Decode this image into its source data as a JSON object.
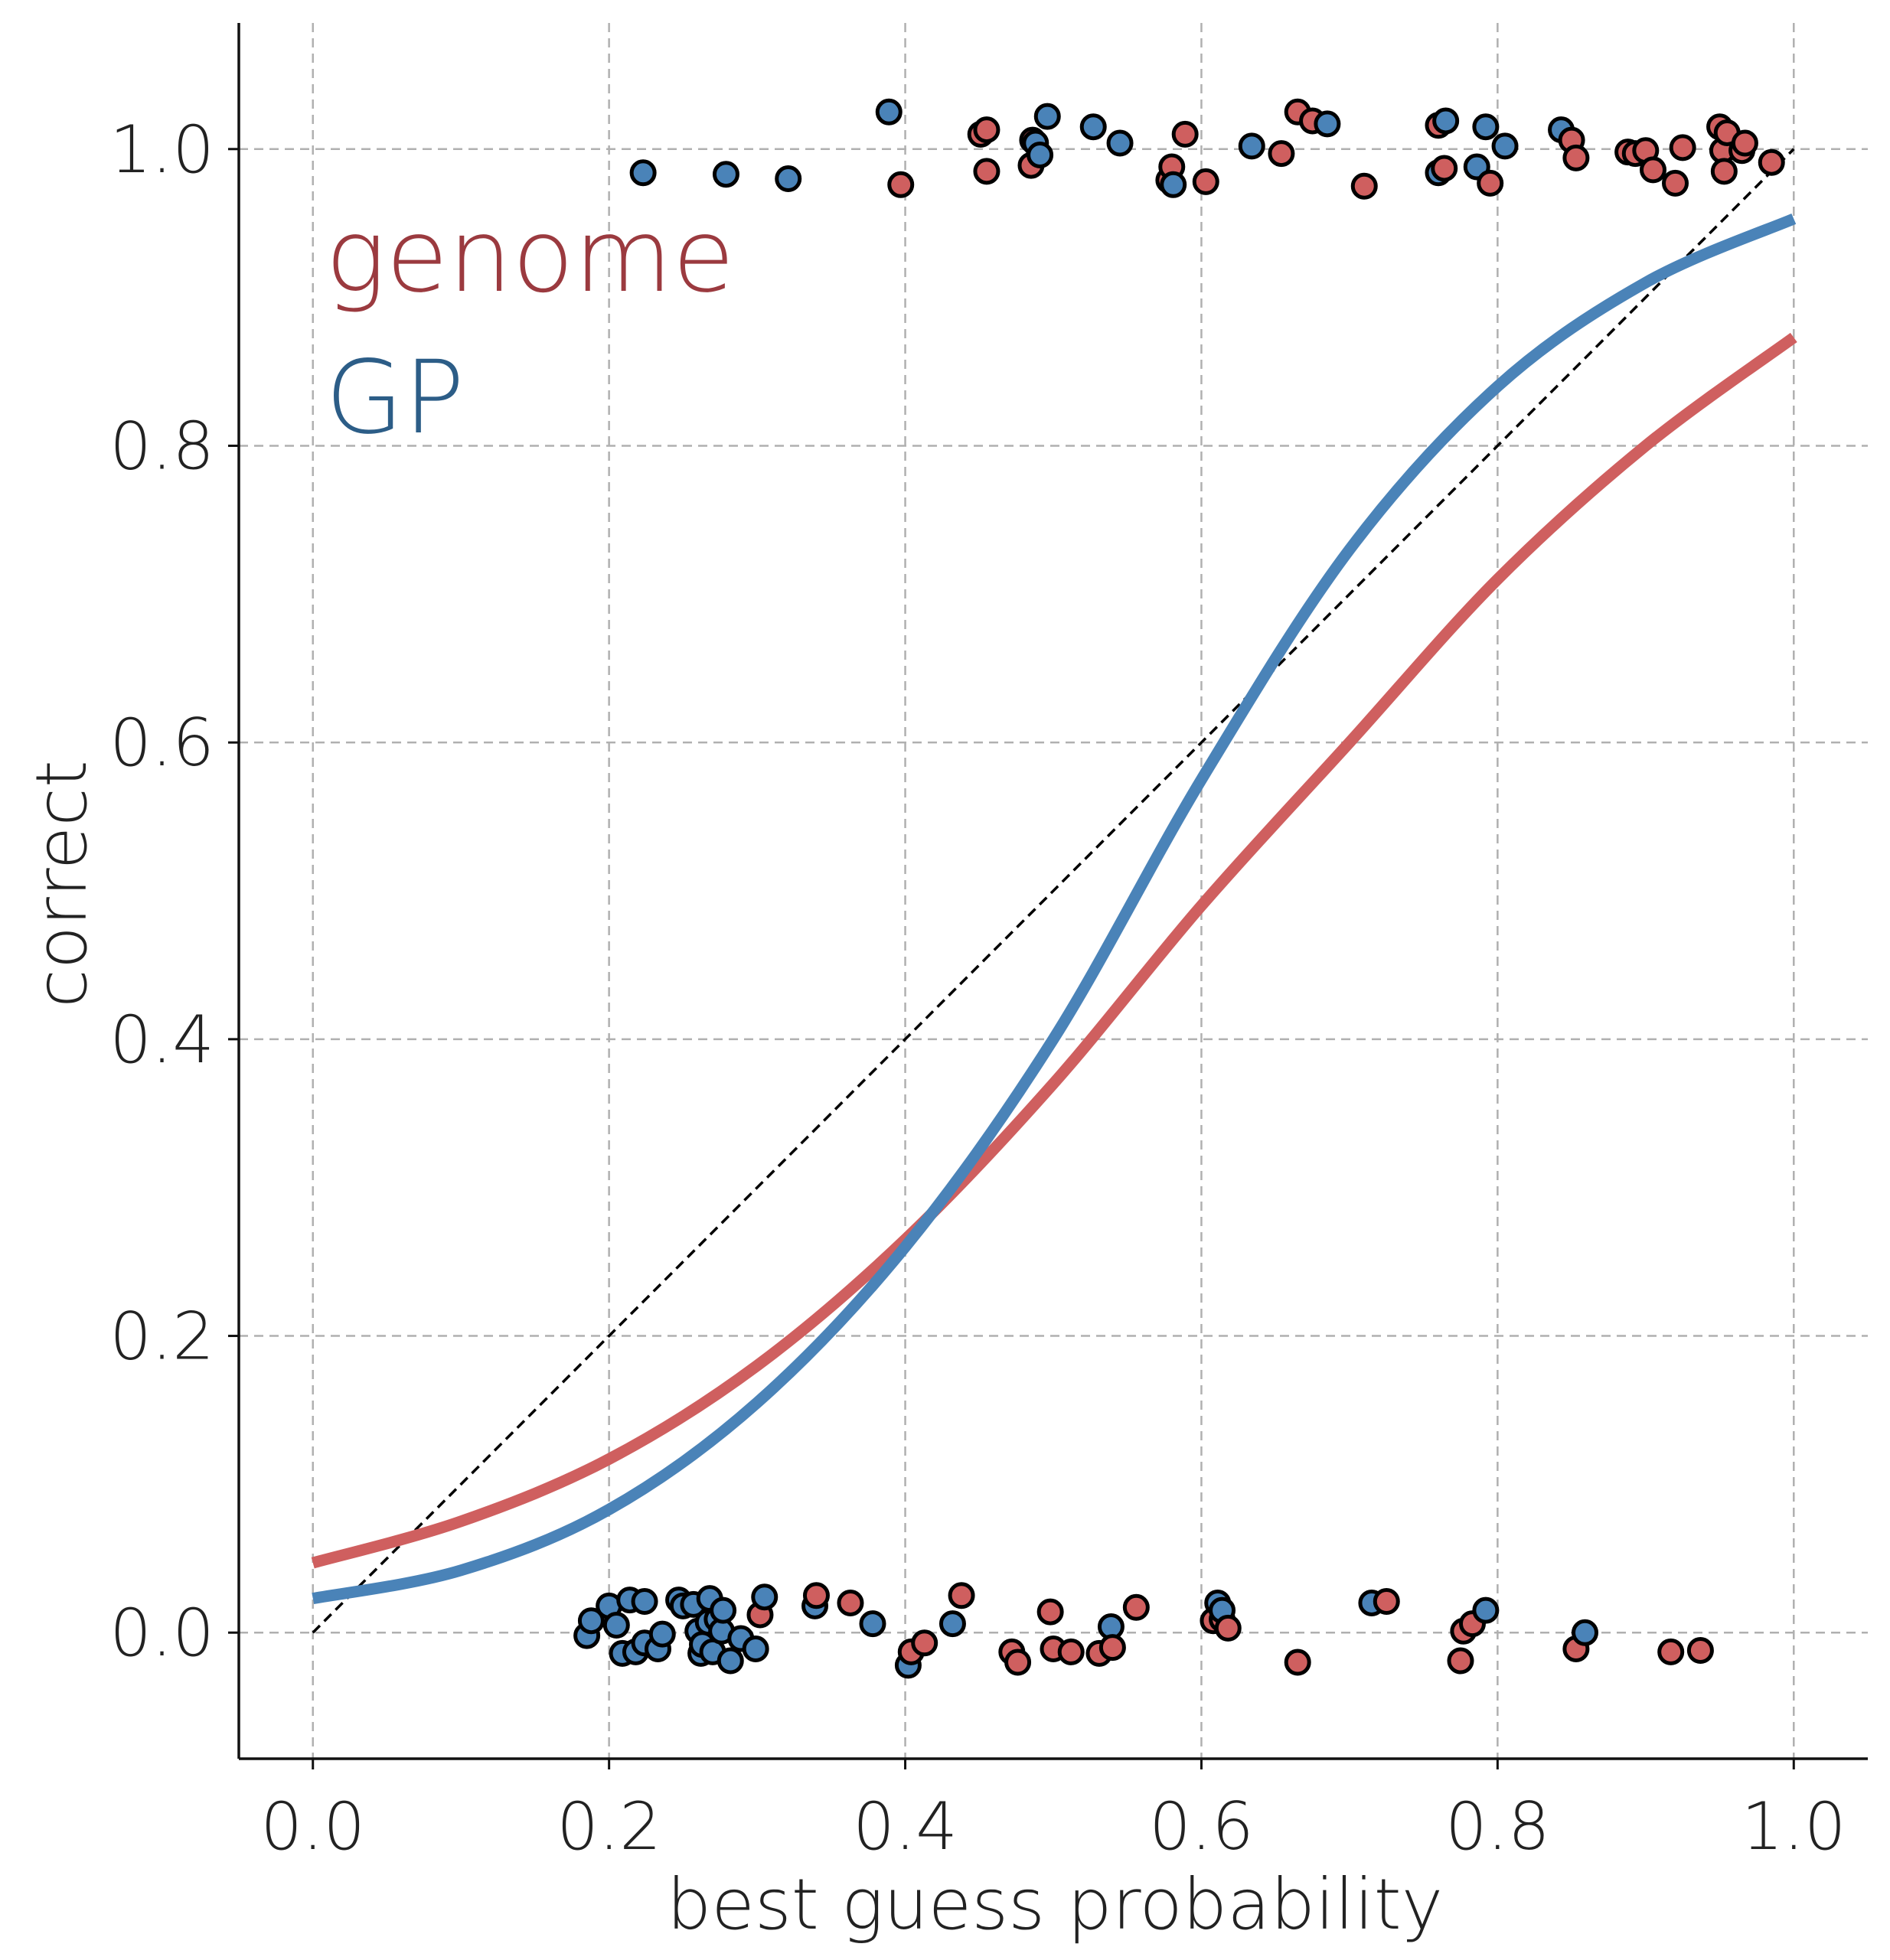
{
  "chart_data": {
    "type": "scatter",
    "xlabel": "best guess probability",
    "ylabel": "correct",
    "xlim": [
      -0.05,
      1.05
    ],
    "ylim": [
      -0.085,
      1.085
    ],
    "xticks": [
      "0.0",
      "0.2",
      "0.4",
      "0.6",
      "0.8",
      "1.0"
    ],
    "yticks": [
      "0.0",
      "0.2",
      "0.4",
      "0.6",
      "0.8",
      "1.0"
    ],
    "grid": true,
    "legend_placement": "upper-left",
    "legend": [
      {
        "label": "genome",
        "color": "#9b3a3f"
      },
      {
        "label": "GP",
        "color": "#2c5d87"
      }
    ],
    "reference_line": {
      "style": "dashed",
      "color": "#000000",
      "x": [
        0.0,
        1.0
      ],
      "y": [
        0.0,
        1.0
      ]
    },
    "series": [
      {
        "name": "genome",
        "color": "#cf5f5f",
        "fit_curve": {
          "x": [
            0.0,
            0.1,
            0.2,
            0.3,
            0.4,
            0.5,
            0.6,
            0.7,
            0.8,
            0.9,
            1.0
          ],
          "y": [
            0.047,
            0.075,
            0.117,
            0.18,
            0.265,
            0.37,
            0.49,
            0.6,
            0.71,
            0.8,
            0.873
          ]
        },
        "points": [
          [
            0.397,
            0.976
          ],
          [
            0.451,
            1.01
          ],
          [
            0.455,
            1.013
          ],
          [
            0.455,
            0.985
          ],
          [
            0.485,
            0.989
          ],
          [
            0.486,
            1.006
          ],
          [
            0.578,
            0.979
          ],
          [
            0.58,
            0.988
          ],
          [
            0.589,
            1.01
          ],
          [
            0.603,
            0.978
          ],
          [
            0.654,
            0.997
          ],
          [
            0.665,
            1.025
          ],
          [
            0.675,
            1.019
          ],
          [
            0.71,
            0.975
          ],
          [
            0.76,
            1.016
          ],
          [
            0.764,
            0.987
          ],
          [
            0.795,
            0.977
          ],
          [
            0.85,
            1.006
          ],
          [
            0.853,
            0.994
          ],
          [
            0.888,
            0.998
          ],
          [
            0.893,
            0.997
          ],
          [
            0.9,
            0.999
          ],
          [
            0.905,
            0.986
          ],
          [
            0.92,
            0.977
          ],
          [
            0.925,
            1.001
          ],
          [
            0.95,
            1.015
          ],
          [
            0.952,
            0.999
          ],
          [
            0.953,
            0.985
          ],
          [
            0.955,
            1.011
          ],
          [
            0.965,
            0.999
          ],
          [
            0.967,
            1.004
          ],
          [
            0.985,
            0.991
          ],
          [
            0.302,
            0.012
          ],
          [
            0.34,
            0.025
          ],
          [
            0.363,
            0.02
          ],
          [
            0.404,
            -0.013
          ],
          [
            0.413,
            -0.007
          ],
          [
            0.438,
            0.025
          ],
          [
            0.472,
            -0.013
          ],
          [
            0.476,
            -0.02
          ],
          [
            0.498,
            0.014
          ],
          [
            0.5,
            -0.011
          ],
          [
            0.512,
            -0.013
          ],
          [
            0.531,
            -0.014
          ],
          [
            0.54,
            -0.01
          ],
          [
            0.556,
            0.017
          ],
          [
            0.608,
            0.008
          ],
          [
            0.614,
            0.009
          ],
          [
            0.618,
            0.003
          ],
          [
            0.665,
            -0.02
          ],
          [
            0.725,
            0.021
          ],
          [
            0.775,
            -0.019
          ],
          [
            0.777,
            0.001
          ],
          [
            0.783,
            0.006
          ],
          [
            0.853,
            -0.011
          ],
          [
            0.917,
            -0.013
          ],
          [
            0.937,
            -0.012
          ]
        ]
      },
      {
        "name": "GP",
        "color": "#4a83b8",
        "fit_curve": {
          "x": [
            0.0,
            0.1,
            0.2,
            0.3,
            0.4,
            0.5,
            0.6,
            0.7,
            0.8,
            0.9,
            1.0
          ],
          "y": [
            0.023,
            0.042,
            0.083,
            0.155,
            0.26,
            0.4,
            0.575,
            0.73,
            0.84,
            0.91,
            0.953
          ]
        },
        "points": [
          [
            0.223,
            0.984
          ],
          [
            0.279,
            0.983
          ],
          [
            0.321,
            0.98
          ],
          [
            0.389,
            1.025
          ],
          [
            0.488,
            1.004
          ],
          [
            0.491,
            0.996
          ],
          [
            0.496,
            1.022
          ],
          [
            0.527,
            1.015
          ],
          [
            0.545,
            1.004
          ],
          [
            0.581,
            0.976
          ],
          [
            0.634,
            1.002
          ],
          [
            0.685,
            1.017
          ],
          [
            0.76,
            0.984
          ],
          [
            0.765,
            1.019
          ],
          [
            0.786,
            0.988
          ],
          [
            0.792,
            1.015
          ],
          [
            0.805,
            1.002
          ],
          [
            0.843,
            1.013
          ],
          [
            0.185,
            -0.002
          ],
          [
            0.188,
            0.008
          ],
          [
            0.2,
            0.018
          ],
          [
            0.205,
            0.005
          ],
          [
            0.209,
            -0.014
          ],
          [
            0.214,
            0.022
          ],
          [
            0.218,
            -0.013
          ],
          [
            0.224,
            -0.007
          ],
          [
            0.224,
            0.021
          ],
          [
            0.233,
            -0.011
          ],
          [
            0.236,
            -0.001
          ],
          [
            0.247,
            0.022
          ],
          [
            0.25,
            0.018
          ],
          [
            0.257,
            0.019
          ],
          [
            0.26,
            0.001
          ],
          [
            0.262,
            -0.014
          ],
          [
            0.263,
            -0.008
          ],
          [
            0.267,
            0.007
          ],
          [
            0.268,
            0.023
          ],
          [
            0.27,
            -0.013
          ],
          [
            0.273,
            0.009
          ],
          [
            0.276,
            0.001
          ],
          [
            0.277,
            0.015
          ],
          [
            0.282,
            -0.019
          ],
          [
            0.289,
            -0.004
          ],
          [
            0.299,
            -0.011
          ],
          [
            0.305,
            0.024
          ],
          [
            0.339,
            0.018
          ],
          [
            0.378,
            0.006
          ],
          [
            0.402,
            -0.022
          ],
          [
            0.432,
            0.006
          ],
          [
            0.539,
            0.004
          ],
          [
            0.611,
            0.02
          ],
          [
            0.614,
            0.015
          ],
          [
            0.715,
            0.02
          ],
          [
            0.792,
            0.015
          ],
          [
            0.859,
            0.0
          ]
        ]
      }
    ]
  }
}
